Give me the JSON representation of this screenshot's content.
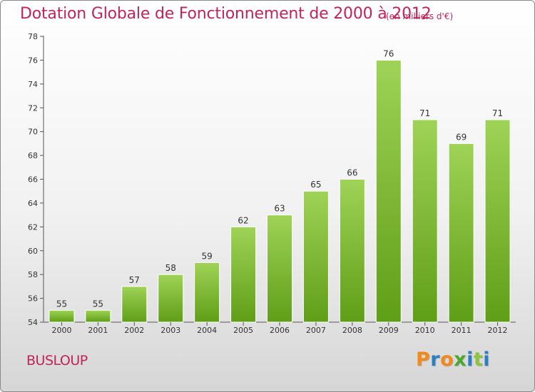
{
  "header": {
    "title": "Dotation Globale de Fonctionnement de 2000 à 2012",
    "unit": "(en milliers d'€)"
  },
  "footer": {
    "commune": "BUSLOUP",
    "logo": [
      "P",
      "r",
      "o",
      "x",
      "i",
      "t",
      "i"
    ]
  },
  "colors": {
    "title": "#c0245a",
    "bar_top": "#9fd357",
    "bar_bottom": "#5f9e17",
    "logo": [
      "#f28a1b",
      "#2e7fc2",
      "#f28a1b",
      "#4aa830",
      "#2e7fc2",
      "#8fc43a",
      "#2e7fc2"
    ]
  },
  "chart_data": {
    "type": "bar",
    "categories": [
      "2000",
      "2001",
      "2002",
      "2003",
      "2004",
      "2005",
      "2006",
      "2007",
      "2008",
      "2009",
      "2010",
      "2011",
      "2012"
    ],
    "values": [
      55,
      55,
      57,
      58,
      59,
      62,
      63,
      65,
      66,
      76,
      71,
      69,
      71
    ],
    "ylim": [
      54,
      78
    ],
    "yticks": [
      54,
      56,
      58,
      60,
      62,
      64,
      66,
      68,
      70,
      72,
      74,
      76,
      78
    ],
    "title": "Dotation Globale de Fonctionnement de 2000 à 2012",
    "xlabel": "",
    "ylabel": "",
    "grid": false
  }
}
